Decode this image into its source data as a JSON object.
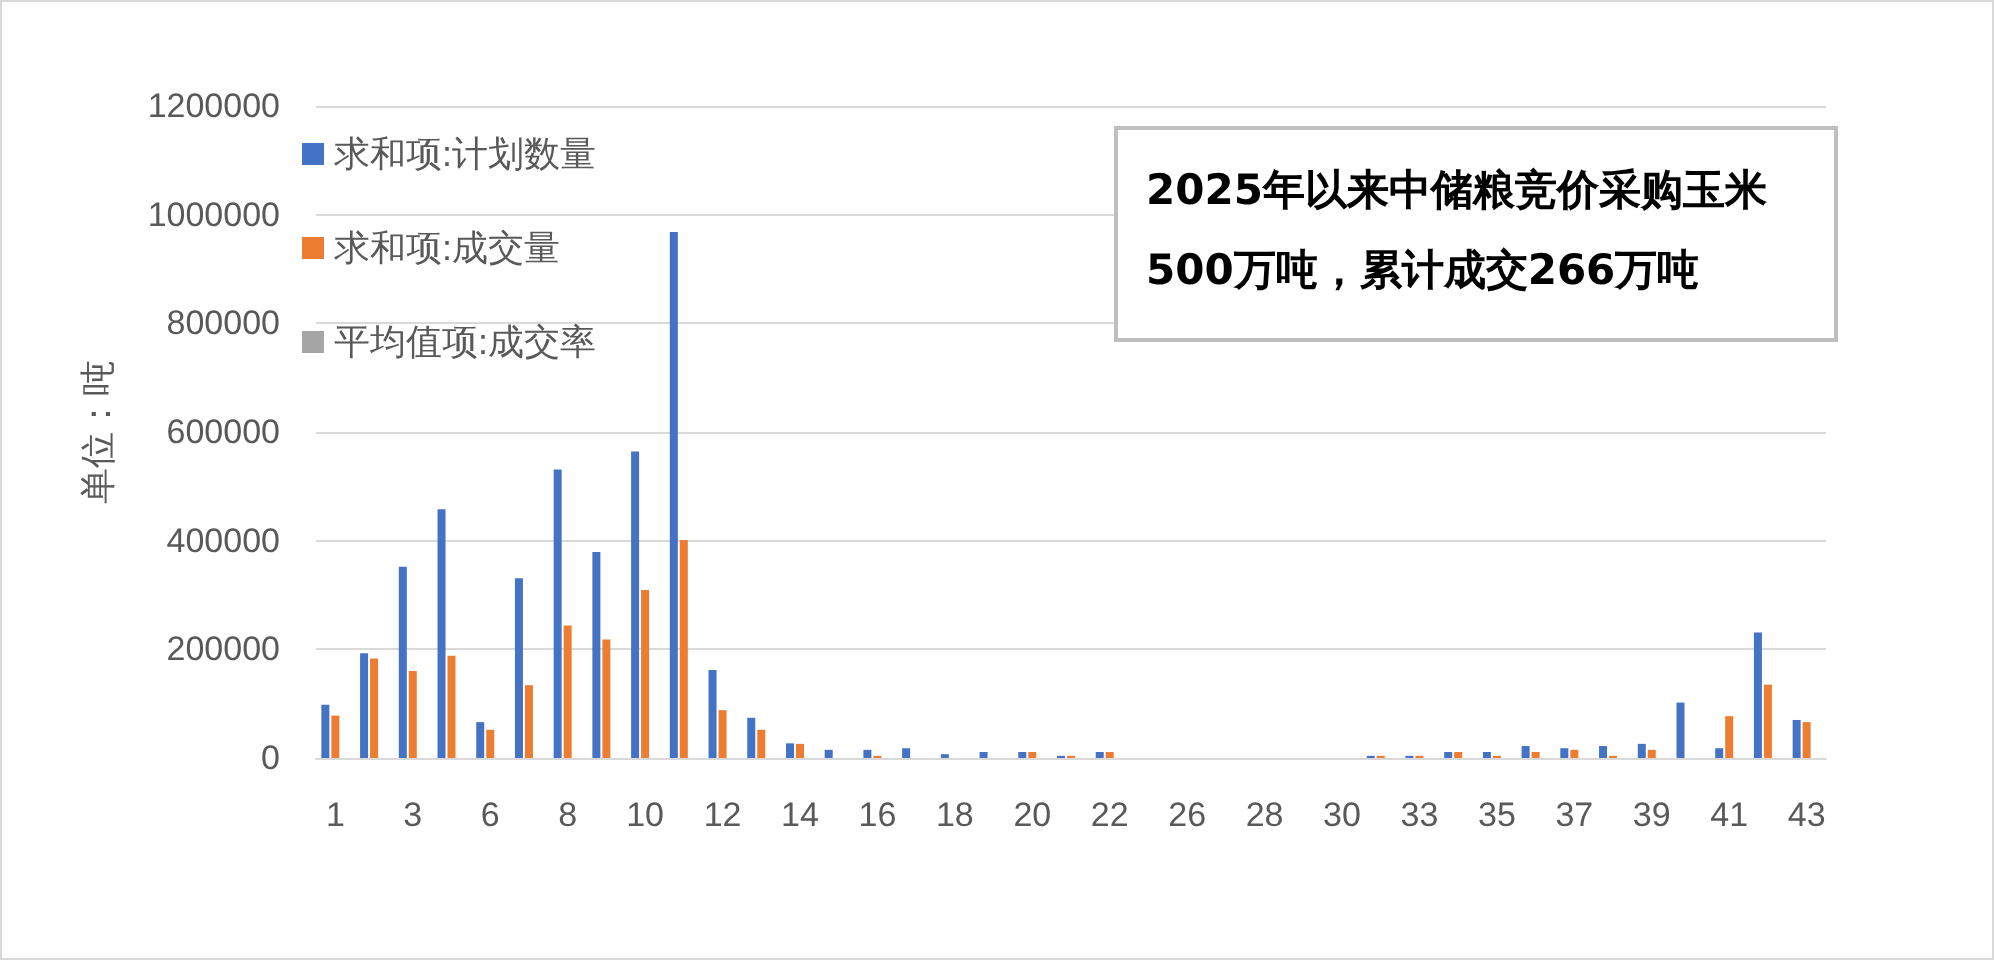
{
  "chart_data": {
    "type": "bar",
    "ylabel": "单位：吨",
    "categories": [
      "1",
      null,
      "3",
      null,
      "6",
      null,
      "8",
      null,
      "10",
      null,
      "12",
      null,
      "14",
      null,
      "16",
      null,
      "18",
      null,
      "20",
      null,
      "22",
      null,
      "26",
      null,
      "28",
      null,
      "30",
      null,
      "33",
      null,
      "35",
      null,
      "37",
      null,
      "39",
      null,
      "41",
      null,
      "43"
    ],
    "series": [
      {
        "name": "求和项:计划数量",
        "color": "#4472c4",
        "values": [
          98000,
          193000,
          352000,
          458000,
          66000,
          331000,
          531000,
          379000,
          564000,
          968000,
          162000,
          74000,
          27000,
          15000,
          15000,
          18000,
          7000,
          11000,
          11000,
          4000,
          11000,
          null,
          null,
          null,
          null,
          null,
          null,
          4000,
          4000,
          11000,
          11000,
          22000,
          18000,
          22000,
          26000,
          102000,
          18000,
          231000,
          70000
        ]
      },
      {
        "name": "求和项:成交量",
        "color": "#ed7d31",
        "values": [
          78000,
          183000,
          160000,
          188000,
          52000,
          134000,
          244000,
          218000,
          309000,
          401000,
          88000,
          52000,
          26000,
          null,
          4000,
          null,
          null,
          null,
          11000,
          4000,
          11000,
          null,
          null,
          null,
          null,
          null,
          null,
          4000,
          4000,
          11000,
          4000,
          11000,
          15000,
          4000,
          15000,
          null,
          77000,
          135000,
          66000
        ]
      },
      {
        "name": "平均值项:成交率",
        "color": "#a5a5a5",
        "values": [
          null,
          null,
          null,
          null,
          null,
          null,
          null,
          null,
          null,
          null,
          null,
          null,
          null,
          null,
          null,
          null,
          null,
          null,
          null,
          null,
          null,
          null,
          null,
          null,
          null,
          null,
          null,
          null,
          null,
          null,
          null,
          null,
          null,
          null,
          null,
          null,
          null,
          null,
          null
        ]
      }
    ],
    "ylim": [
      0,
      1200000
    ],
    "yticks": [
      0,
      200000,
      400000,
      600000,
      800000,
      1000000,
      1200000
    ],
    "grid": "y",
    "legend": "top left",
    "annotations": [
      "2025年以来中储粮竞价采购玉米",
      "500万吨，累计成交266万吨"
    ]
  }
}
